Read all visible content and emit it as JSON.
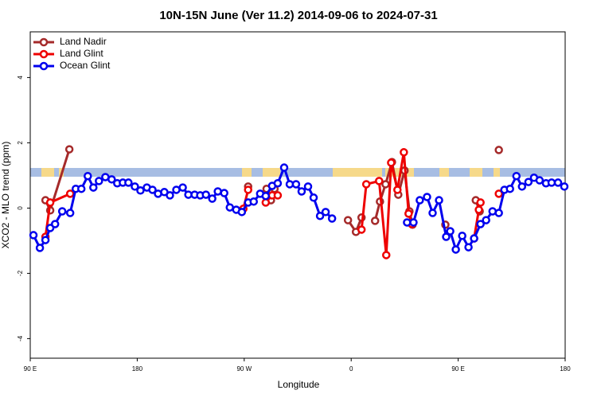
{
  "chart_data": {
    "type": "line",
    "title": "10N-15N June (Ver 11.2)   2014-09-06 to 2024-07-31",
    "x_label": "Longitude",
    "y_label": "XCO2 - MLO trend (ppm)",
    "xlim": [
      90,
      540
    ],
    "xticks": [
      {
        "value": 90,
        "label": "90 E"
      },
      {
        "value": 180,
        "label": "180"
      },
      {
        "value": 270,
        "label": "90 W"
      },
      {
        "value": 360,
        "label": "0"
      },
      {
        "value": 450,
        "label": "90 E"
      },
      {
        "value": 540,
        "label": "180"
      }
    ],
    "ylim": [
      -4.6,
      5.4
    ],
    "yticks": [
      -4,
      -2,
      0,
      2,
      4
    ],
    "legend": "top-left",
    "series": [
      {
        "name": "Land Nadir",
        "color": "#a52a2a",
        "x": [
          102.8,
          106.8,
          122.9,
          190,
          273.3,
          280,
          288.8,
          292.5,
          295.5,
          330,
          357.3,
          364.0,
          368.7,
          374,
          380.1,
          384.2,
          388.9,
          394.3,
          399.6,
          404.9,
          409.0,
          411.6,
          425,
          439.2,
          450,
          464.8,
          468.1,
          476,
          484.2
        ],
        "values": [
          0.24,
          -0.07,
          1.8,
          null,
          0.66,
          null,
          0.59,
          0.24,
          0.59,
          null,
          -0.37,
          -0.73,
          -0.29,
          null,
          -0.39,
          0.2,
          0.73,
          1.41,
          0.41,
          1.15,
          -0.1,
          -0.51,
          null,
          -0.51,
          null,
          0.24,
          -0.1,
          null,
          1.78
        ]
      },
      {
        "name": "Land Glint",
        "color": "#ee0000",
        "x": [
          102.8,
          106.8,
          123.6,
          190,
          269.3,
          273.3,
          280,
          288.1,
          293.5,
          298.2,
          330,
          368.7,
          372.7,
          383.5,
          389.5,
          393.6,
          398.9,
          404.3,
          408.3,
          411.0,
          440,
          463.4,
          467.4,
          468.8,
          476,
          484.2
        ],
        "values": [
          -0.88,
          0.17,
          0.44,
          null,
          -0.02,
          0.56,
          null,
          0.17,
          0.39,
          0.39,
          null,
          -0.66,
          0.73,
          0.83,
          -1.44,
          1.39,
          0.56,
          1.71,
          -0.17,
          -0.49,
          null,
          -0.93,
          -0.05,
          0.17,
          null,
          0.44
        ]
      },
      {
        "name": "Ocean Glint",
        "color": "#0000ee",
        "x": [
          92.7,
          98.1,
          102.8,
          106.8,
          110.9,
          116.9,
          123.6,
          128.3,
          133.0,
          138.4,
          143.1,
          147.8,
          153.2,
          158.5,
          163.2,
          167.9,
          172.6,
          178.0,
          182.7,
          188.1,
          192.8,
          197.5,
          202.8,
          207.5,
          212.9,
          218.3,
          223.0,
          228.3,
          233.0,
          237.8,
          243.1,
          247.8,
          253.2,
          257.9,
          263.3,
          268.0,
          273.3,
          278.0,
          283.4,
          288.1,
          293.5,
          298.2,
          303.6,
          308.3,
          313.6,
          318.3,
          323.7,
          328.4,
          333.8,
          338.5,
          343.9,
          375,
          407.0,
          412.4,
          417.7,
          423.8,
          428.5,
          433.9,
          439.9,
          443.3,
          448.0,
          453.4,
          458.7,
          463.4,
          468.8,
          473.5,
          478.9,
          484.2,
          488.9,
          493.6,
          499.0,
          503.7,
          509.1,
          513.8,
          518.5,
          523.9,
          528.6,
          534.0,
          539.3
        ],
        "values": [
          -0.83,
          -1.22,
          -0.98,
          -0.61,
          -0.49,
          -0.1,
          -0.15,
          0.59,
          0.59,
          0.98,
          0.63,
          0.83,
          0.95,
          0.88,
          0.76,
          0.78,
          0.78,
          0.66,
          0.54,
          0.63,
          0.56,
          0.44,
          0.49,
          0.39,
          0.56,
          0.63,
          0.41,
          0.41,
          0.39,
          0.41,
          0.29,
          0.51,
          0.46,
          0.02,
          -0.05,
          -0.12,
          0.17,
          0.2,
          0.44,
          0.37,
          0.68,
          0.76,
          1.24,
          0.73,
          0.73,
          0.51,
          0.66,
          0.32,
          -0.24,
          -0.12,
          -0.32,
          null,
          -0.44,
          -0.44,
          0.24,
          0.34,
          -0.15,
          0.24,
          -0.88,
          -0.71,
          -1.27,
          -0.85,
          -1.2,
          -0.93,
          -0.49,
          -0.37,
          -0.1,
          -0.15,
          0.56,
          0.59,
          0.98,
          0.66,
          0.8,
          0.93,
          0.85,
          0.76,
          0.78,
          0.78,
          0.66
        ]
      }
    ]
  }
}
